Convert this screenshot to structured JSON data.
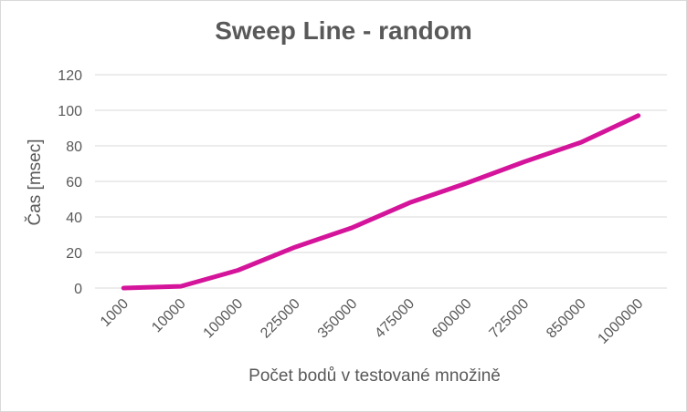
{
  "chart_data": {
    "type": "line",
    "title": "Sweep Line - random",
    "xlabel": "Počet bodů v testované množině",
    "ylabel": "Čas [msec]",
    "categories": [
      "1000",
      "10000",
      "100000",
      "225000",
      "350000",
      "475000",
      "600000",
      "725000",
      "850000",
      "1000000"
    ],
    "series": [
      {
        "values": [
          0,
          1,
          10,
          23,
          34,
          48,
          59,
          71,
          82,
          97
        ]
      }
    ],
    "ylim": [
      0,
      120
    ],
    "yticks": [
      0,
      20,
      40,
      60,
      80,
      100,
      120
    ],
    "grid": true,
    "legend": "none",
    "colors": {
      "line": "#d4149a",
      "grid": "#d9d9d9",
      "text": "#595959"
    }
  }
}
